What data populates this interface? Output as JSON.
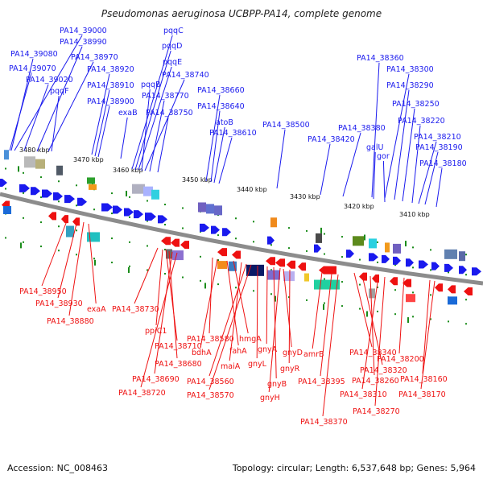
{
  "title": "Pseudomonas aeruginosa UCBPP-PA14, complete genome",
  "footer": {
    "accession": "Accession: NC_008463",
    "topology": "Topology: circular; Length: 6,537,648 bp; Genes: 5,964"
  },
  "colors": {
    "forward": "#1a1aee",
    "reverse": "#ee1111",
    "backbone": "#8c8c8c",
    "tick": "#1a8c1a"
  },
  "coordinate_labels": [
    "3480 kbp",
    "3470 kbp",
    "3460 kbp",
    "3450 kbp",
    "3440 kbp",
    "3430 kbp",
    "3420 kbp",
    "3410 kbp"
  ],
  "forward_genes": [
    "PA14_39000",
    "PA14_39080",
    "PA14_38990",
    "PA14_38970",
    "PA14_39070",
    "PA14_39020",
    "pqqF",
    "PA14_38920",
    "PA14_38910",
    "PA14_38900",
    "exaB",
    "pqqC",
    "pqqD",
    "pqqE",
    "pqqB",
    "PA14_38740",
    "PA14_38770",
    "PA14_38750",
    "PA14_38660",
    "PA14_38640",
    "atoB",
    "PA14_38610",
    "PA14_38500",
    "PA14_38360",
    "PA14_38300",
    "PA14_38290",
    "PA14_38250",
    "PA14_38380",
    "PA14_38420",
    "PA14_38220",
    "galU",
    "PA14_38210",
    "gor",
    "PA14_38190",
    "PA14_38180"
  ],
  "reverse_genes": [
    "PA14_38950",
    "PA14_38930",
    "PA14_38880",
    "exaA",
    "PA14_38730",
    "ppiC1",
    "PA14_38710",
    "PA14_38680",
    "PA14_38690",
    "PA14_38720",
    "PA14_38580",
    "bdhA",
    "fahA",
    "hmgA",
    "maiA",
    "PA14_38560",
    "PA14_38570",
    "gnyL",
    "gnyA",
    "gnyB",
    "gnyH",
    "gnyD",
    "gnyR",
    "amrB",
    "PA14_38340",
    "PA14_38395",
    "PA14_38370",
    "PA14_38320",
    "PA14_38260",
    "PA14_38310",
    "PA14_38270",
    "PA14_38200",
    "PA14_38160",
    "PA14_38170"
  ]
}
